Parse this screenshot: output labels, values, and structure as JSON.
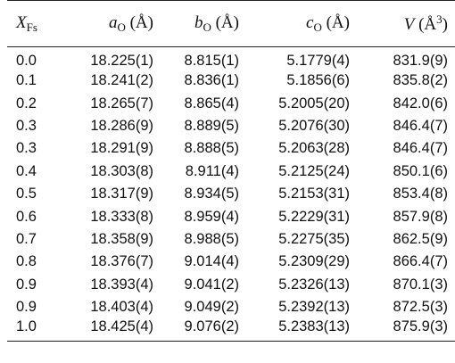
{
  "table": {
    "headers": [
      {
        "sym": "X",
        "sub": "Fs",
        "unit": ""
      },
      {
        "sym": "a",
        "sub": "O",
        "unit": " (Å)"
      },
      {
        "sym": "b",
        "sub": "O",
        "unit": " (Å)"
      },
      {
        "sym": "c",
        "sub": "O",
        "unit": " (Å)"
      },
      {
        "sym": "V",
        "sub": "",
        "unit": " (Å",
        "sup": "3",
        "close": ")"
      }
    ],
    "rows": [
      [
        "0.0",
        "18.225(1)",
        "8.815(1)",
        "5.1779(4)",
        "831.9(9)"
      ],
      [
        "0.1",
        "18.241(2)",
        "8.836(1)",
        "5.1856(6)",
        "835.8(2)"
      ],
      [
        "0.2",
        "18.265(7)",
        "8.865(4)",
        "5.2005(20)",
        "842.0(6)"
      ],
      [
        "0.3",
        "18.286(9)",
        "8.889(5)",
        "5.2076(30)",
        "846.4(7)"
      ],
      [
        "0.3",
        "18.291(9)",
        "8.888(5)",
        "5.2063(28)",
        "846.4(7)"
      ],
      [
        "0.4",
        "18.303(8)",
        "8.911(4)",
        "5.2125(24)",
        "850.1(6)"
      ],
      [
        "0.5",
        "18.317(9)",
        "8.934(5)",
        "5.2153(31)",
        "853.4(8)"
      ],
      [
        "0.6",
        "18.333(8)",
        "8.959(4)",
        "5.2229(31)",
        "857.9(8)"
      ],
      [
        "0.7",
        "18.358(9)",
        "8.988(5)",
        "5.2275(35)",
        "862.5(9)"
      ],
      [
        "0.8",
        "18.376(7)",
        "9.014(4)",
        "5.2309(29)",
        "866.4(7)"
      ],
      [
        "0.9",
        "18.393(4)",
        "9.041(2)",
        "5.2326(13)",
        "870.1(3)"
      ],
      [
        "0.9",
        "18.403(4)",
        "9.049(2)",
        "5.2392(13)",
        "872.5(3)"
      ],
      [
        "1.0",
        "18.425(4)",
        "9.076(2)",
        "5.2383(13)",
        "875.9(3)"
      ]
    ]
  }
}
